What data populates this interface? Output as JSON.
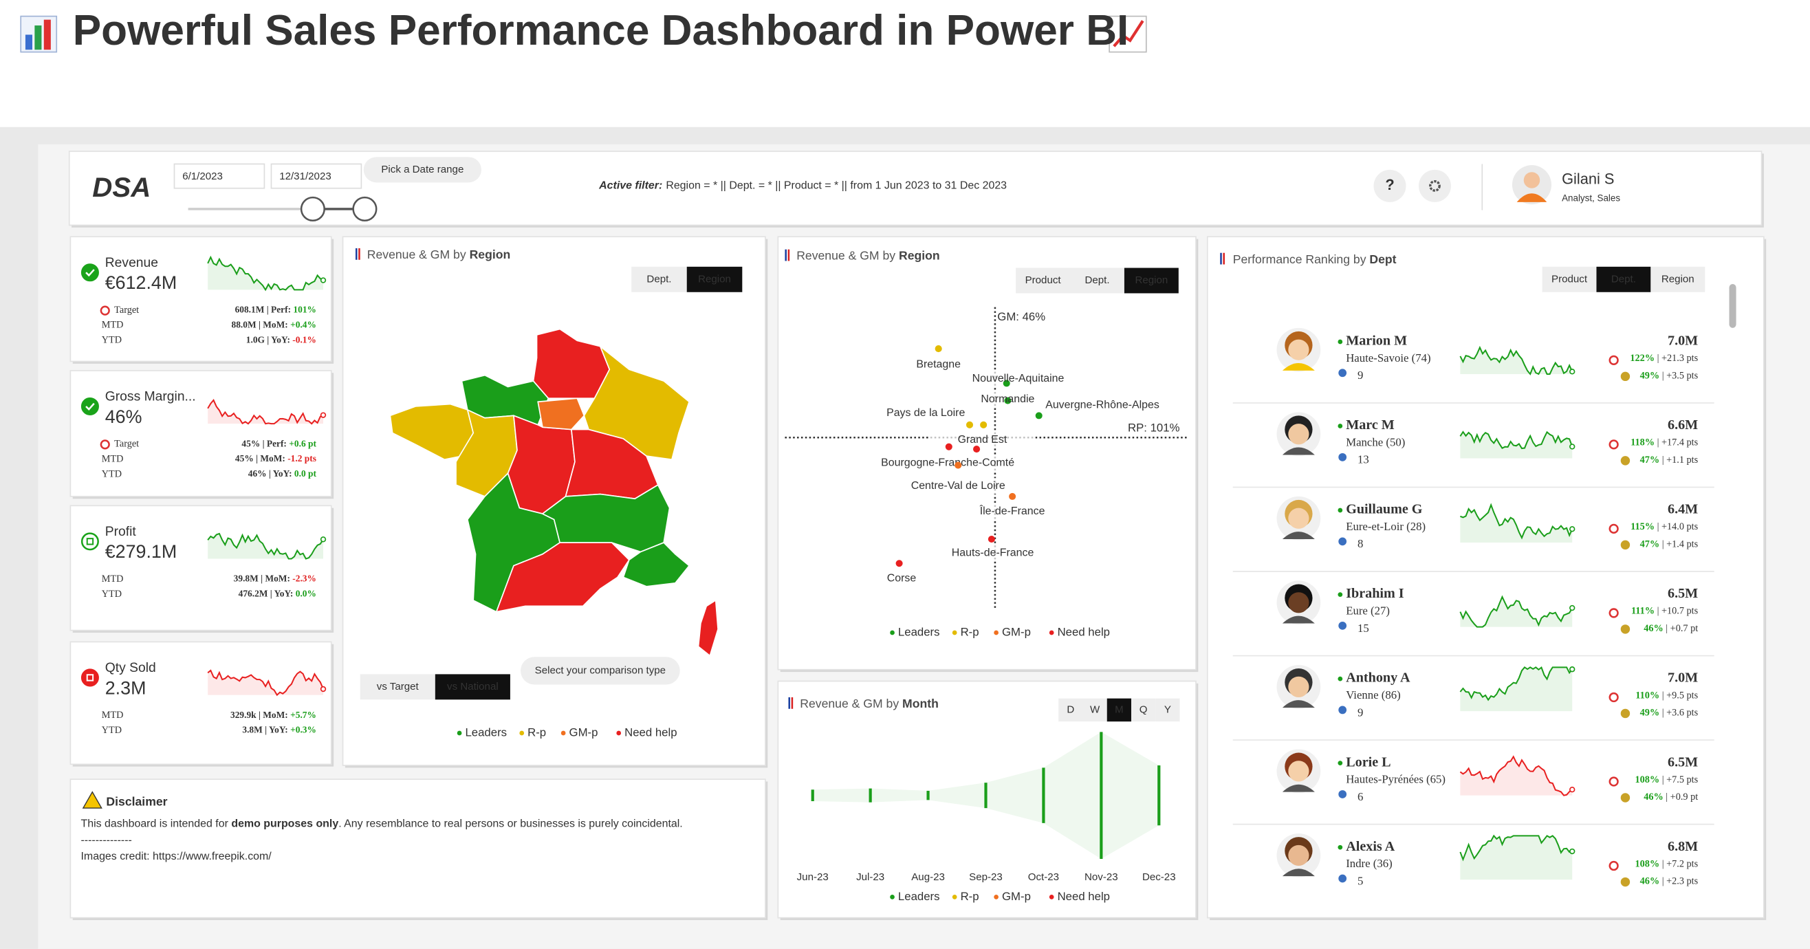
{
  "header": {
    "title": "Powerful Sales Performance Dashboard in Power BI"
  },
  "toolbar": {
    "logo": "DSA",
    "date_start": "6/1/2023",
    "date_end": "12/31/2023",
    "date_hint": "Pick a Date range",
    "active_filter_label": "Active filter:",
    "active_filter": "Region = * || Dept. = * || Product = * || from 1 Jun 2023 to 31 Dec 2023",
    "help": "?",
    "user": {
      "name": "Gilani S",
      "role": "Analyst, Sales"
    }
  },
  "legend": [
    {
      "name": "Leaders",
      "color": "#1a9e1a"
    },
    {
      "name": "R-p",
      "color": "#e3bb00"
    },
    {
      "name": "GM-p",
      "color": "#f07020"
    },
    {
      "name": "Need help",
      "color": "#e82020"
    }
  ],
  "kpis": [
    {
      "label": "Revenue",
      "value": "€612.4M",
      "status_color": "#1aa31a",
      "spark_color": "#1a9e1a",
      "rows": [
        {
          "label": "Target",
          "main": "608.1M | Perf: ",
          "delta": "101%",
          "delta_color": "#1a9e1a"
        },
        {
          "label": "MTD",
          "main": "88.0M | MoM: ",
          "delta": "+0.4%",
          "delta_color": "#1a9e1a"
        },
        {
          "label": "YTD",
          "main": "1.0G | YoY: ",
          "delta": "-0.1%",
          "delta_color": "#e02020"
        }
      ]
    },
    {
      "label": "Gross Margin...",
      "value": "46%",
      "status_color": "#1aa31a",
      "spark_color": "#e82020",
      "rows": [
        {
          "label": "Target",
          "main": "45% | Perf: ",
          "delta": "+0.6 pt",
          "delta_color": "#1a9e1a"
        },
        {
          "label": "MTD",
          "main": "45% | MoM: ",
          "delta": "-1.2 pts",
          "delta_color": "#e02020"
        },
        {
          "label": "YTD",
          "main": "46% | YoY: ",
          "delta": "0.0 pt",
          "delta_color": "#1a9e1a"
        }
      ]
    },
    {
      "label": "Profit",
      "value": "€279.1M",
      "status_color": "#1aa31a",
      "spark_color": "#1a9e1a",
      "rows": [
        {
          "label": "MTD",
          "main": "39.8M | MoM: ",
          "delta": "-2.3%",
          "delta_color": "#e02020"
        },
        {
          "label": "YTD",
          "main": "476.2M | YoY: ",
          "delta": "0.0%",
          "delta_color": "#1a9e1a"
        }
      ]
    },
    {
      "label": "Qty Sold",
      "value": "2.3M",
      "status_color": "#e82020",
      "spark_color": "#e82020",
      "rows": [
        {
          "label": "MTD",
          "main": "329.9k | MoM: ",
          "delta": "+5.7%",
          "delta_color": "#1a9e1a"
        },
        {
          "label": "YTD",
          "main": "3.8M | YoY: ",
          "delta": "+0.3%",
          "delta_color": "#1a9e1a"
        }
      ]
    }
  ],
  "map_panel": {
    "title_prefix": "Revenue & GM by ",
    "title_bold": "Region",
    "tabs": [
      "Dept.",
      "Region"
    ],
    "active_tab": 1,
    "compare": [
      "vs Target",
      "vs National"
    ],
    "active_compare": 1,
    "compare_hint": "Select your comparison type"
  },
  "scatter_panel": {
    "title_prefix": "Revenue & GM by ",
    "title_bold": "Region",
    "tabs": [
      "Product",
      "Dept.",
      "Region"
    ],
    "active_tab": 2,
    "y_ref": "GM: 46%",
    "x_ref": "RP: 101%",
    "points": [
      {
        "label": "Bretagne",
        "status": 1
      },
      {
        "label": "Nouvelle-Aquitaine",
        "status": 0
      },
      {
        "label": "Normandie",
        "status": 0
      },
      {
        "label": "Auvergne-Rhône-Alpes",
        "status": 0
      },
      {
        "label": "Pays de la Loire",
        "status": 1
      },
      {
        "label": "Grand Est",
        "status": 3
      },
      {
        "label": "Bourgogne-Franche-Comté",
        "status": 3
      },
      {
        "label": "Centre-Val de Loire",
        "status": 2
      },
      {
        "label": "Île-de-France",
        "status": 2
      },
      {
        "label": "Hauts-de-France",
        "status": 3
      },
      {
        "label": "Corse",
        "status": 3
      }
    ]
  },
  "month_panel": {
    "title_prefix": "Revenue & GM by ",
    "title_bold": "Month",
    "tabs": [
      "D",
      "W",
      "M",
      "Q",
      "Y"
    ],
    "active_tab": 2,
    "months": [
      "Jun-23",
      "Jul-23",
      "Aug-23",
      "Sep-23",
      "Oct-23",
      "Nov-23",
      "Dec-23"
    ]
  },
  "ranking_panel": {
    "title_prefix": "Performance Ranking by ",
    "title_bold": "Dept",
    "tabs": [
      "Product",
      "Dept.",
      "Region"
    ],
    "active_tab": 1,
    "people": [
      {
        "name": "Marion M",
        "dept": "Haute-Savoie (74)",
        "count": "9",
        "value": "7.0M",
        "rp": "122%",
        "rp_delta": " | +21.3 pts",
        "gm": "49%",
        "gm_delta": " | +3.5 pts",
        "spark_color": "#1a9e1a"
      },
      {
        "name": "Marc M",
        "dept": "Manche (50)",
        "count": "13",
        "value": "6.6M",
        "rp": "118%",
        "rp_delta": " | +17.4 pts",
        "gm": "47%",
        "gm_delta": " | +1.1 pts",
        "spark_color": "#1a9e1a"
      },
      {
        "name": "Guillaume G",
        "dept": "Eure-et-Loir (28)",
        "count": "8",
        "value": "6.4M",
        "rp": "115%",
        "rp_delta": " | +14.0 pts",
        "gm": "47%",
        "gm_delta": " | +1.4 pts",
        "spark_color": "#1a9e1a"
      },
      {
        "name": "Ibrahim I",
        "dept": "Eure (27)",
        "count": "15",
        "value": "6.5M",
        "rp": "111%",
        "rp_delta": " | +10.7 pts",
        "gm": "46%",
        "gm_delta": " | +0.7 pt",
        "spark_color": "#1a9e1a"
      },
      {
        "name": "Anthony A",
        "dept": "Vienne (86)",
        "count": "9",
        "value": "7.0M",
        "rp": "110%",
        "rp_delta": " | +9.5 pts",
        "gm": "49%",
        "gm_delta": " | +3.6 pts",
        "spark_color": "#1a9e1a"
      },
      {
        "name": "Lorie L",
        "dept": "Hautes-Pyrénées (65)",
        "count": "6",
        "value": "6.5M",
        "rp": "108%",
        "rp_delta": " | +7.5 pts",
        "gm": "46%",
        "gm_delta": " | +0.9 pt",
        "spark_color": "#e82020"
      },
      {
        "name": "Alexis A",
        "dept": "Indre (36)",
        "count": "5",
        "value": "6.8M",
        "rp": "108%",
        "rp_delta": " | +7.2 pts",
        "gm": "46%",
        "gm_delta": " | +2.3 pts",
        "spark_color": "#1a9e1a"
      }
    ]
  },
  "disclaimer": {
    "title": "Disclaimer",
    "text_before": "This dashboard is intended for ",
    "text_bold": "demo purposes only",
    "text_after": ". Any resemblance to real persons or businesses is purely coincidental.",
    "separator": "--------------",
    "credit": "Images credit: https://www.freepik.com/"
  }
}
